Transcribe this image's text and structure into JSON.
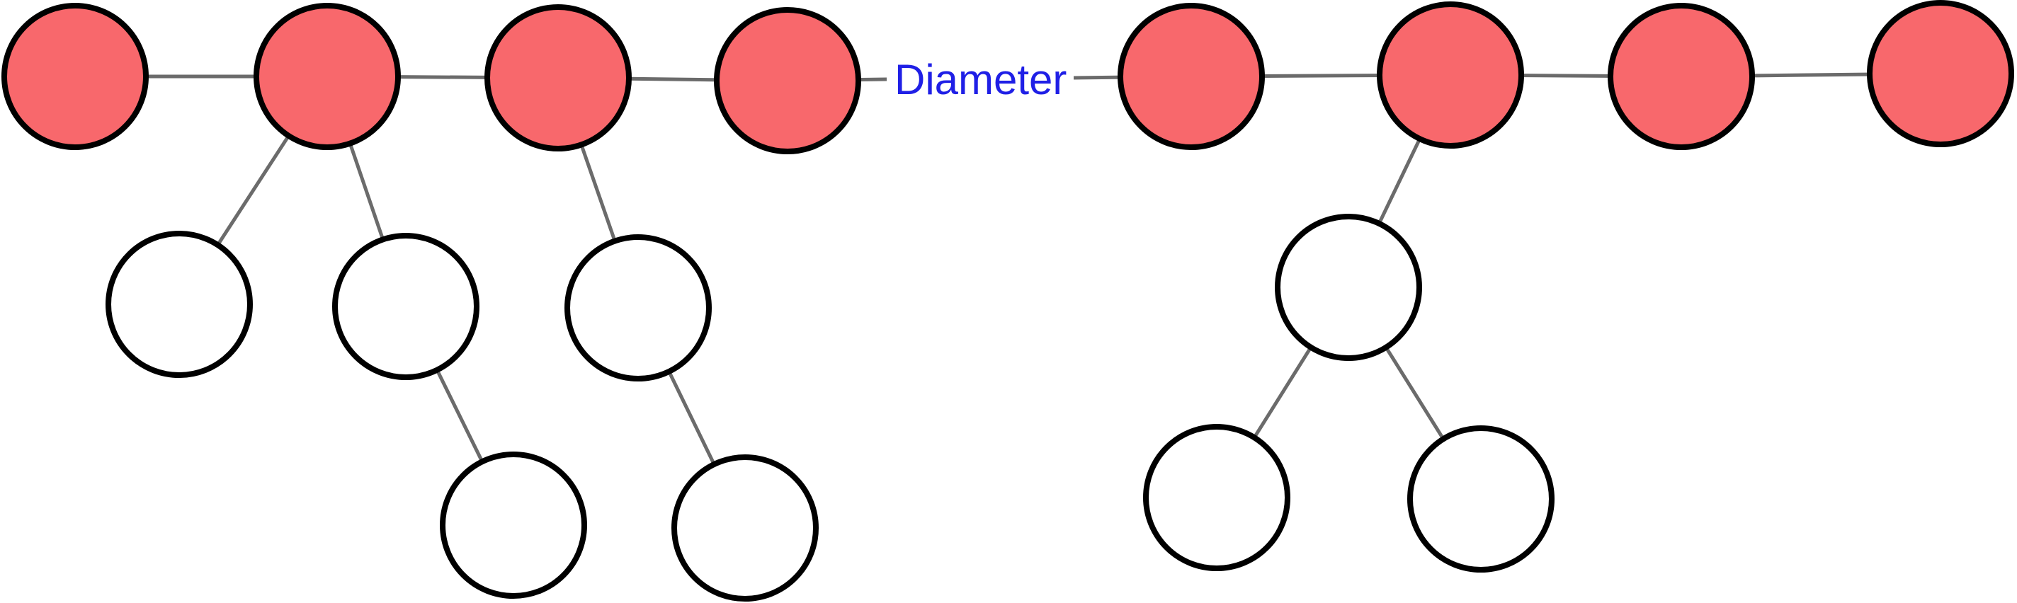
{
  "diagram": {
    "label": "Diameter",
    "label_color": "#1f1fe6",
    "edge_color": "#6b6b6b",
    "node_stroke": "#000000",
    "diameter_node_fill": "#f8686c",
    "other_node_fill": "#ffffff"
  }
}
